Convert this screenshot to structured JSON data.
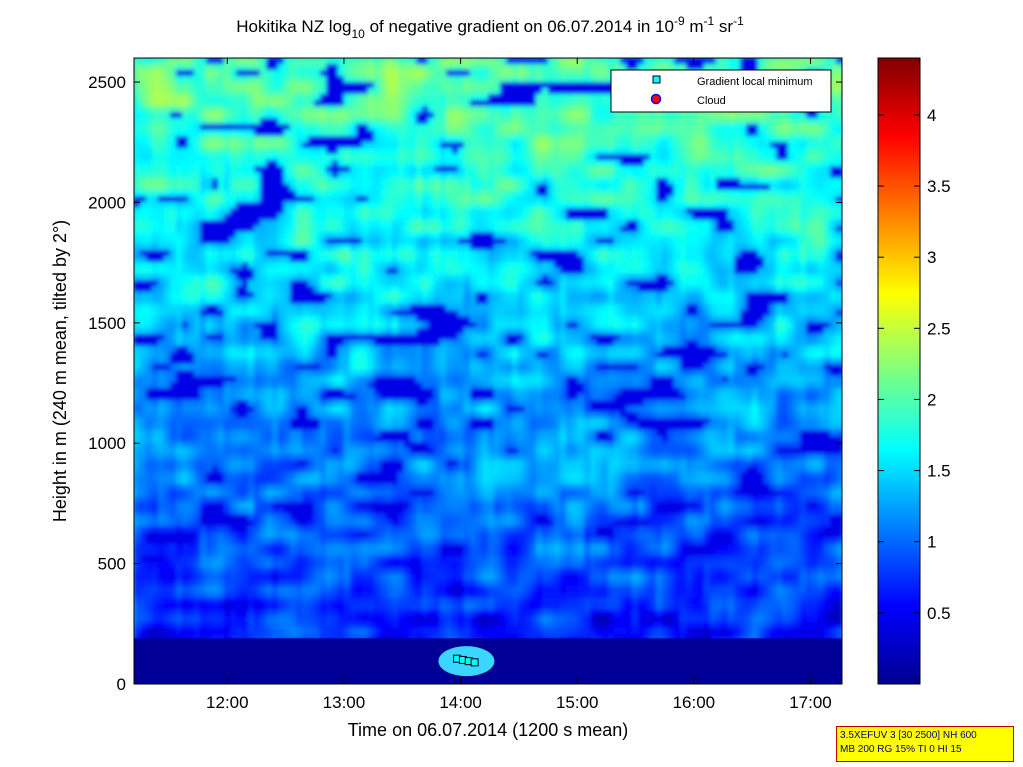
{
  "chart_data": {
    "type": "heatmap",
    "title": {
      "prefix": "Hokitika NZ log",
      "prefix_sub": "10",
      "middle": " of negative gradient on 06.07.2014 in 10",
      "exp1": "-9",
      "unit1": " m",
      "exp2": "-1",
      "unit2": " sr",
      "exp3": "-1"
    },
    "xlabel": "Time on 06.07.2014 (1200 s mean)",
    "ylabel": "Height in m (240 m mean, tilted by 2°)",
    "x_range_hours": [
      11.2,
      17.27
    ],
    "y_range": [
      0,
      2600
    ],
    "x_ticks": [
      {
        "value": 12,
        "label": "12:00"
      },
      {
        "value": 13,
        "label": "13:00"
      },
      {
        "value": 14,
        "label": "14:00"
      },
      {
        "value": 15,
        "label": "15:00"
      },
      {
        "value": 16,
        "label": "16:00"
      },
      {
        "value": 17,
        "label": "17:00"
      }
    ],
    "y_ticks": [
      {
        "value": 0,
        "label": "0"
      },
      {
        "value": 500,
        "label": "500"
      },
      {
        "value": 1000,
        "label": "1000"
      },
      {
        "value": 1500,
        "label": "1500"
      },
      {
        "value": 2000,
        "label": "2000"
      },
      {
        "value": 2500,
        "label": "2500"
      }
    ],
    "colorbar": {
      "range": [
        0,
        4.4
      ],
      "ticks": [
        {
          "value": 0.5,
          "label": "0.5"
        },
        {
          "value": 1,
          "label": "1"
        },
        {
          "value": 1.5,
          "label": "1.5"
        },
        {
          "value": 2,
          "label": "2"
        },
        {
          "value": 2.5,
          "label": "2.5"
        },
        {
          "value": 3,
          "label": "3"
        },
        {
          "value": 3.5,
          "label": "3.5"
        },
        {
          "value": 4,
          "label": "4"
        }
      ],
      "colormap": "jet"
    },
    "legend": {
      "placement": "top-right",
      "entries": [
        {
          "label": "Gradient local minimum",
          "color": "#00ffff",
          "marker": "square"
        },
        {
          "label": "Cloud",
          "color": "#ff0000",
          "marker": "circle"
        }
      ]
    },
    "low_layer": {
      "top_height": 190,
      "value": 0.1
    },
    "gradient_minima": [
      {
        "time": 13.97,
        "height": 105
      },
      {
        "time": 14.02,
        "height": 100
      },
      {
        "time": 14.07,
        "height": 95
      },
      {
        "time": 14.12,
        "height": 90
      }
    ],
    "grid": false
  },
  "info_box": {
    "line1": "3.5XEFUV 3 [30 2500] NH 600",
    "line2": "MB 200 RG 15% TI 0 HI 15"
  }
}
